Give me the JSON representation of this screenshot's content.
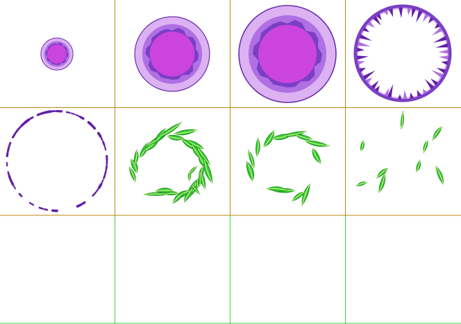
{
  "sprite_sheet": {
    "columns": 4,
    "rows": 3,
    "grid_colors": {
      "upper": "#b8860b",
      "lower": "#3ad33a"
    },
    "palette": {
      "bubble_outer": "#dcb2f2",
      "bubble_ring": "#b06fe3",
      "bubble_rim": "#7a3fc4",
      "bubble_core": "#cc44de",
      "bubble_edge": "#6a2fb0",
      "shard": "#6420a8",
      "leaf_dark": "#1f9a1f",
      "leaf": "#3acb3a",
      "leaf_light": "#b6f07a"
    },
    "frames": [
      {
        "id": 1,
        "type": "bubble",
        "scale": 0.33
      },
      {
        "id": 2,
        "type": "bubble",
        "scale": 0.77
      },
      {
        "id": 3,
        "type": "bubble",
        "scale": 1.0
      },
      {
        "id": 4,
        "type": "shattering-ring"
      },
      {
        "id": 5,
        "type": "dotted-ring"
      },
      {
        "id": 6,
        "type": "leaf-swirl",
        "density": "full"
      },
      {
        "id": 7,
        "type": "leaf-swirl",
        "density": "dispersing"
      },
      {
        "id": 8,
        "type": "leaf-scatter",
        "density": "sparse"
      },
      {
        "id": 9,
        "type": "empty"
      },
      {
        "id": 10,
        "type": "empty"
      },
      {
        "id": 11,
        "type": "empty"
      },
      {
        "id": 12,
        "type": "empty"
      }
    ]
  }
}
